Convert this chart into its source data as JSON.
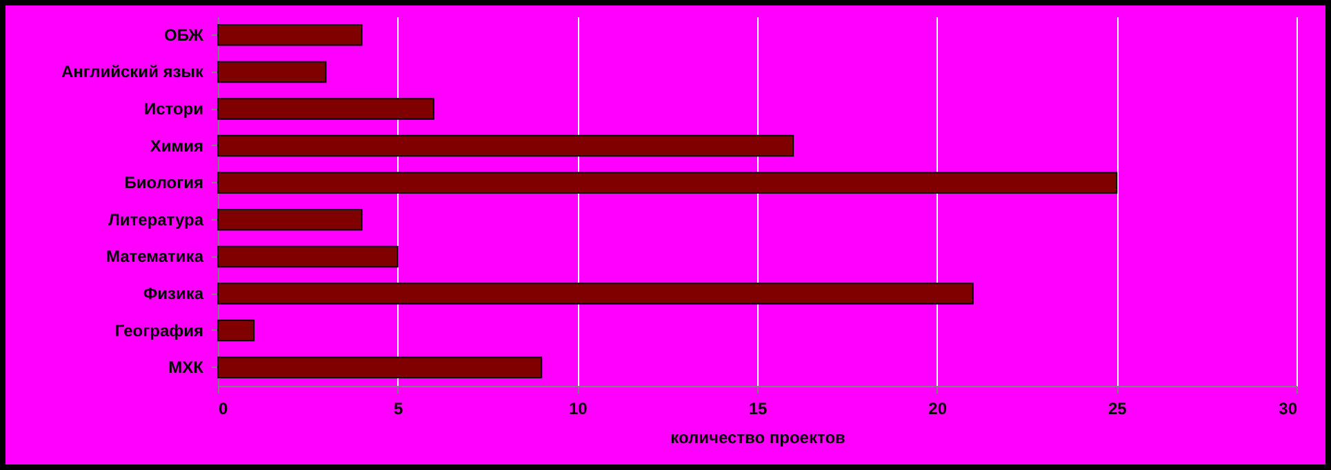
{
  "chart_data": {
    "type": "bar",
    "orientation": "horizontal",
    "xlabel": "количество проектов",
    "categories": [
      "ОБЖ",
      "Английский язык",
      "Истори",
      "Химия",
      "Биология",
      "Литература",
      "Математика",
      "Физика",
      "География",
      "МХК"
    ],
    "values": [
      4,
      3,
      6,
      16,
      25,
      4,
      5,
      21,
      1,
      9
    ],
    "color": "#800000",
    "xlim": [
      0,
      30
    ],
    "xticks": [
      0,
      5,
      10,
      15,
      20,
      25,
      30
    ],
    "grid": "x"
  }
}
